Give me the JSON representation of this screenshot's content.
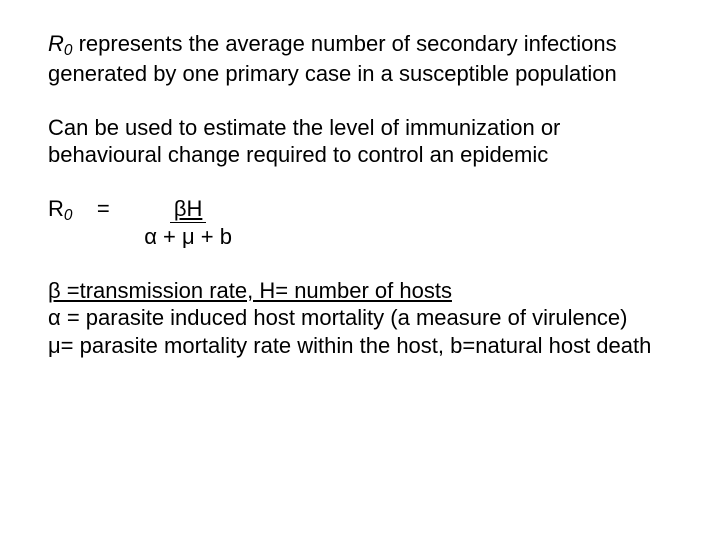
{
  "p1_lead_R": "R",
  "p1_lead_sub": "0",
  "p1_rest": " represents the average number of secondary infections generated by one primary case in a susceptible population",
  "p2": "Can be used to estimate the level of immunization or behavioural change required to control an epidemic",
  "eq_R": "R",
  "eq_sub": "0",
  "eq_equals": "    =    ",
  "eq_num": "βH",
  "eq_den": "α + μ + b",
  "p4_l1": "β =transmission rate, H= number of hosts",
  "p4_l2": "α = parasite induced host mortality (a measure of virulence)",
  "p4_l3": "μ= parasite mortality rate within the host, b=natural host death"
}
